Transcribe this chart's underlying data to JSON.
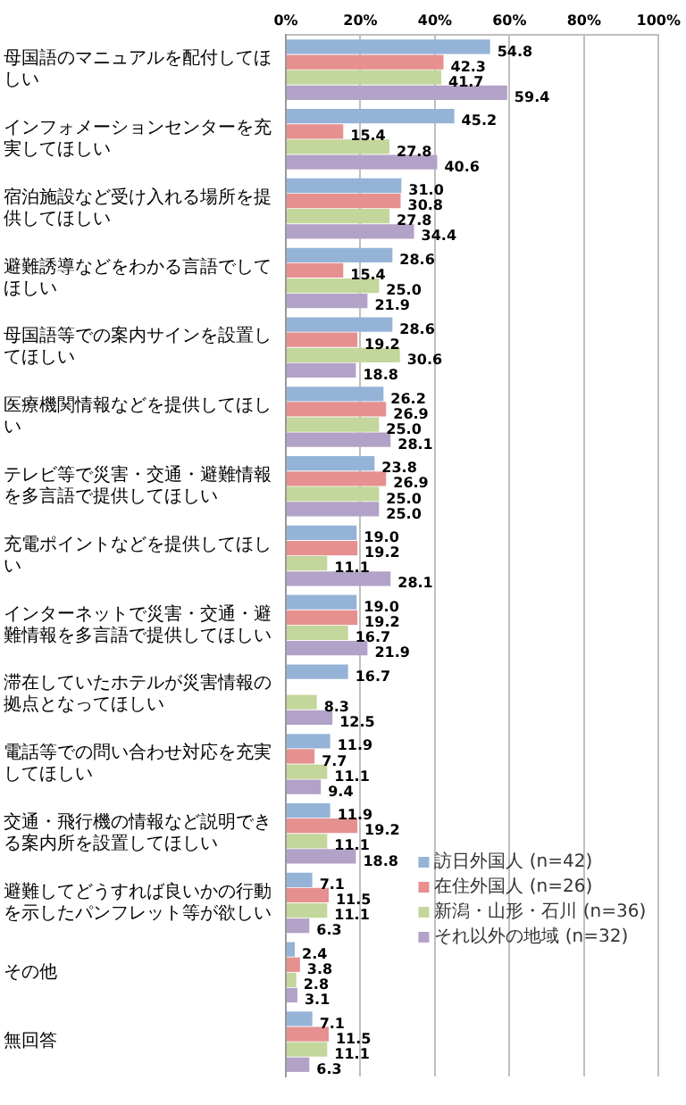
{
  "chart_data": {
    "type": "bar",
    "orientation": "horizontal",
    "categories": [
      "母国語のマニュアルを配付してほしい",
      "インフォメーションセンターを充実してほしい",
      "宿泊施設など受け入れる場所を提供してほしい",
      "避難誘導などをわかる言語でしてほしい",
      "母国語等での案内サインを設置してほしい",
      "医療機関情報などを提供してほしい",
      "テレビ等で災害・交通・避難情報を多言語で提供してほしい",
      "充電ポイントなどを提供してほしい",
      "インターネットで災害・交通・避難情報を多言語で提供してほしい",
      "滞在していたホテルが災害情報の拠点となってほしい",
      "電話等での問い合わせ対応を充実してほしい",
      "交通・飛行機の情報など説明できる案内所を設置してほしい",
      "避難してどうすれば良いかの行動を示したパンフレット等が欲しい",
      "その他",
      "無回答"
    ],
    "series": [
      {
        "name": "訪日外国人 (n=42)",
        "color": "#95b3d7",
        "values": [
          54.8,
          45.2,
          31.0,
          28.6,
          28.6,
          26.2,
          23.8,
          19.0,
          19.0,
          16.7,
          11.9,
          11.9,
          7.1,
          2.4,
          7.1
        ],
        "value_labels": [
          "54.8",
          "45.2",
          "31.0",
          "28.6",
          "28.6",
          "26.2",
          "23.8",
          "19.0",
          "19.0",
          "16.7",
          "11.9",
          "11.9",
          "7.1",
          "2.4",
          "7.1"
        ]
      },
      {
        "name": "在住外国人 (n=26)",
        "color": "#e6908f",
        "values": [
          42.3,
          15.4,
          30.8,
          15.4,
          19.2,
          26.9,
          26.9,
          19.2,
          19.2,
          null,
          7.7,
          19.2,
          11.5,
          3.8,
          11.5
        ],
        "value_labels": [
          "42.3",
          "15.4",
          "30.8",
          "15.4",
          "19.2",
          "26.9",
          "26.9",
          "19.2",
          "19.2",
          null,
          "7.7",
          "19.2",
          "11.5",
          "3.8",
          "11.5"
        ]
      },
      {
        "name": "新潟・山形・石川 (n=36)",
        "color": "#c3d69b",
        "values": [
          41.7,
          27.8,
          27.8,
          25.0,
          30.6,
          25.0,
          25.0,
          11.1,
          16.7,
          8.3,
          11.1,
          11.1,
          11.1,
          2.8,
          11.1
        ],
        "value_labels": [
          "41.7",
          "27.8",
          "27.8",
          "25.0",
          "30.6",
          "25.0",
          "25.0",
          "11.1",
          "16.7",
          "8.3",
          "11.1",
          "11.1",
          "11.1",
          "2.8",
          "11.1"
        ]
      },
      {
        "name": "それ以外の地域 (n=32)",
        "color": "#b3a2c7",
        "values": [
          59.4,
          40.6,
          34.4,
          21.9,
          18.8,
          28.1,
          25.0,
          28.1,
          21.9,
          12.5,
          9.4,
          18.8,
          6.3,
          3.1,
          6.3
        ],
        "value_labels": [
          "59.4",
          "40.6",
          "34.4",
          "21.9",
          "18.8",
          "28.1",
          "25.0",
          "28.1",
          "21.9",
          "12.5",
          "9.4",
          "18.8",
          "6.3",
          "3.1",
          "6.3"
        ]
      }
    ],
    "xlim": [
      0,
      100
    ],
    "xticks": [
      {
        "value": 0,
        "label": "0%"
      },
      {
        "value": 20,
        "label": "20%"
      },
      {
        "value": 40,
        "label": "40%"
      },
      {
        "value": 60,
        "label": "60%"
      },
      {
        "value": 80,
        "label": "80%"
      },
      {
        "value": 100,
        "label": "100%"
      }
    ],
    "grid": "x",
    "legend": "bottom right"
  }
}
